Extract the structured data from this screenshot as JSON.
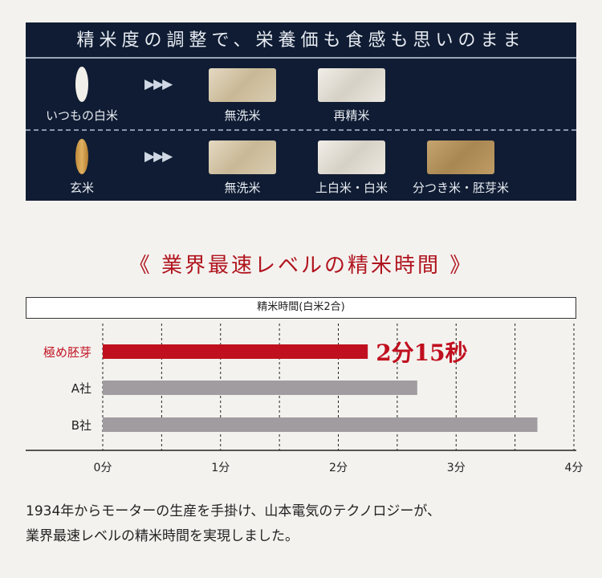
{
  "panel": {
    "title": "精米度の調整で、栄養価も食感も思いのまま",
    "rows": [
      {
        "source": "いつもの白米",
        "arrow": "▶▶▶",
        "outputs": [
          "無洗米",
          "再精米"
        ]
      },
      {
        "source": "玄米",
        "arrow": "▶▶▶",
        "outputs": [
          "無洗米",
          "上白米・白米",
          "分つき米・胚芽米"
        ]
      }
    ]
  },
  "heading": "《 業界最速レベルの精米時間 》",
  "chart_data": {
    "type": "bar",
    "orientation": "horizontal",
    "title": "精米時間(白米2合)",
    "categories": [
      "極め胚芽",
      "A社",
      "B社"
    ],
    "values": [
      2.25,
      2.67,
      3.69
    ],
    "unit": "分",
    "xlim": [
      0,
      4
    ],
    "xticks": [
      "0分",
      "1分",
      "2分",
      "3分",
      "4分"
    ],
    "grid": "dashed vertical every 0.5",
    "colors": {
      "highlight": "#c0101f",
      "others": "#a09ca0"
    },
    "annotation": "2分15秒"
  },
  "body": {
    "line1": "1934年からモーターの生産を手掛け、山本電気のテクノロジーが、",
    "line2": "業界最速レベルの精米時間を実現しました。"
  }
}
